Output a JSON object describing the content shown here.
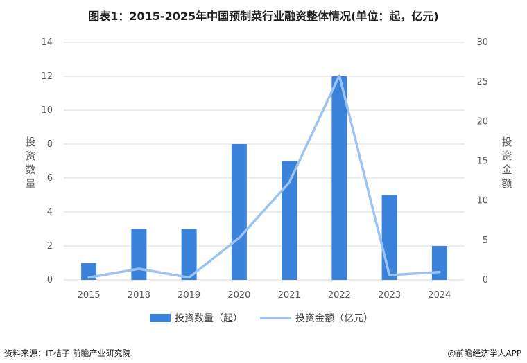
{
  "title": "图表1：2015-2025年中国预制菜行业融资整体情况(单位：起，亿元)",
  "source": "资料来源：IT桔子 前瞻产业研究院",
  "brand": "@前瞻经济学人APP",
  "colors": {
    "bar": "#3b82db",
    "line": "#9cc3f3",
    "grid": "#d9d9d9",
    "text": "#595959"
  },
  "chart_data": {
    "type": "bar",
    "categories": [
      "2015",
      "2018",
      "2019",
      "2020",
      "2021",
      "2022",
      "2023",
      "2024"
    ],
    "series": [
      {
        "name": "投资数量（起）",
        "type": "bar",
        "axis": "left",
        "values": [
          1,
          3,
          3,
          8,
          7,
          12,
          5,
          2
        ]
      },
      {
        "name": "投资金额（亿元）",
        "type": "line",
        "axis": "right",
        "values": [
          0.3,
          1.4,
          0.3,
          5.3,
          12.3,
          25.8,
          0.6,
          1.0
        ]
      }
    ],
    "ylabel_left": "投资数量",
    "ylabel_right": "投资金额",
    "ylim_left": [
      0,
      14
    ],
    "ylim_right": [
      0,
      30
    ],
    "yticks_left": [
      "0",
      "2",
      "4",
      "6",
      "8",
      "10",
      "12",
      "14"
    ],
    "yticks_right": [
      "0",
      "5",
      "10",
      "15",
      "20",
      "25",
      "30"
    ],
    "grid": true,
    "legend_position": "bottom"
  }
}
